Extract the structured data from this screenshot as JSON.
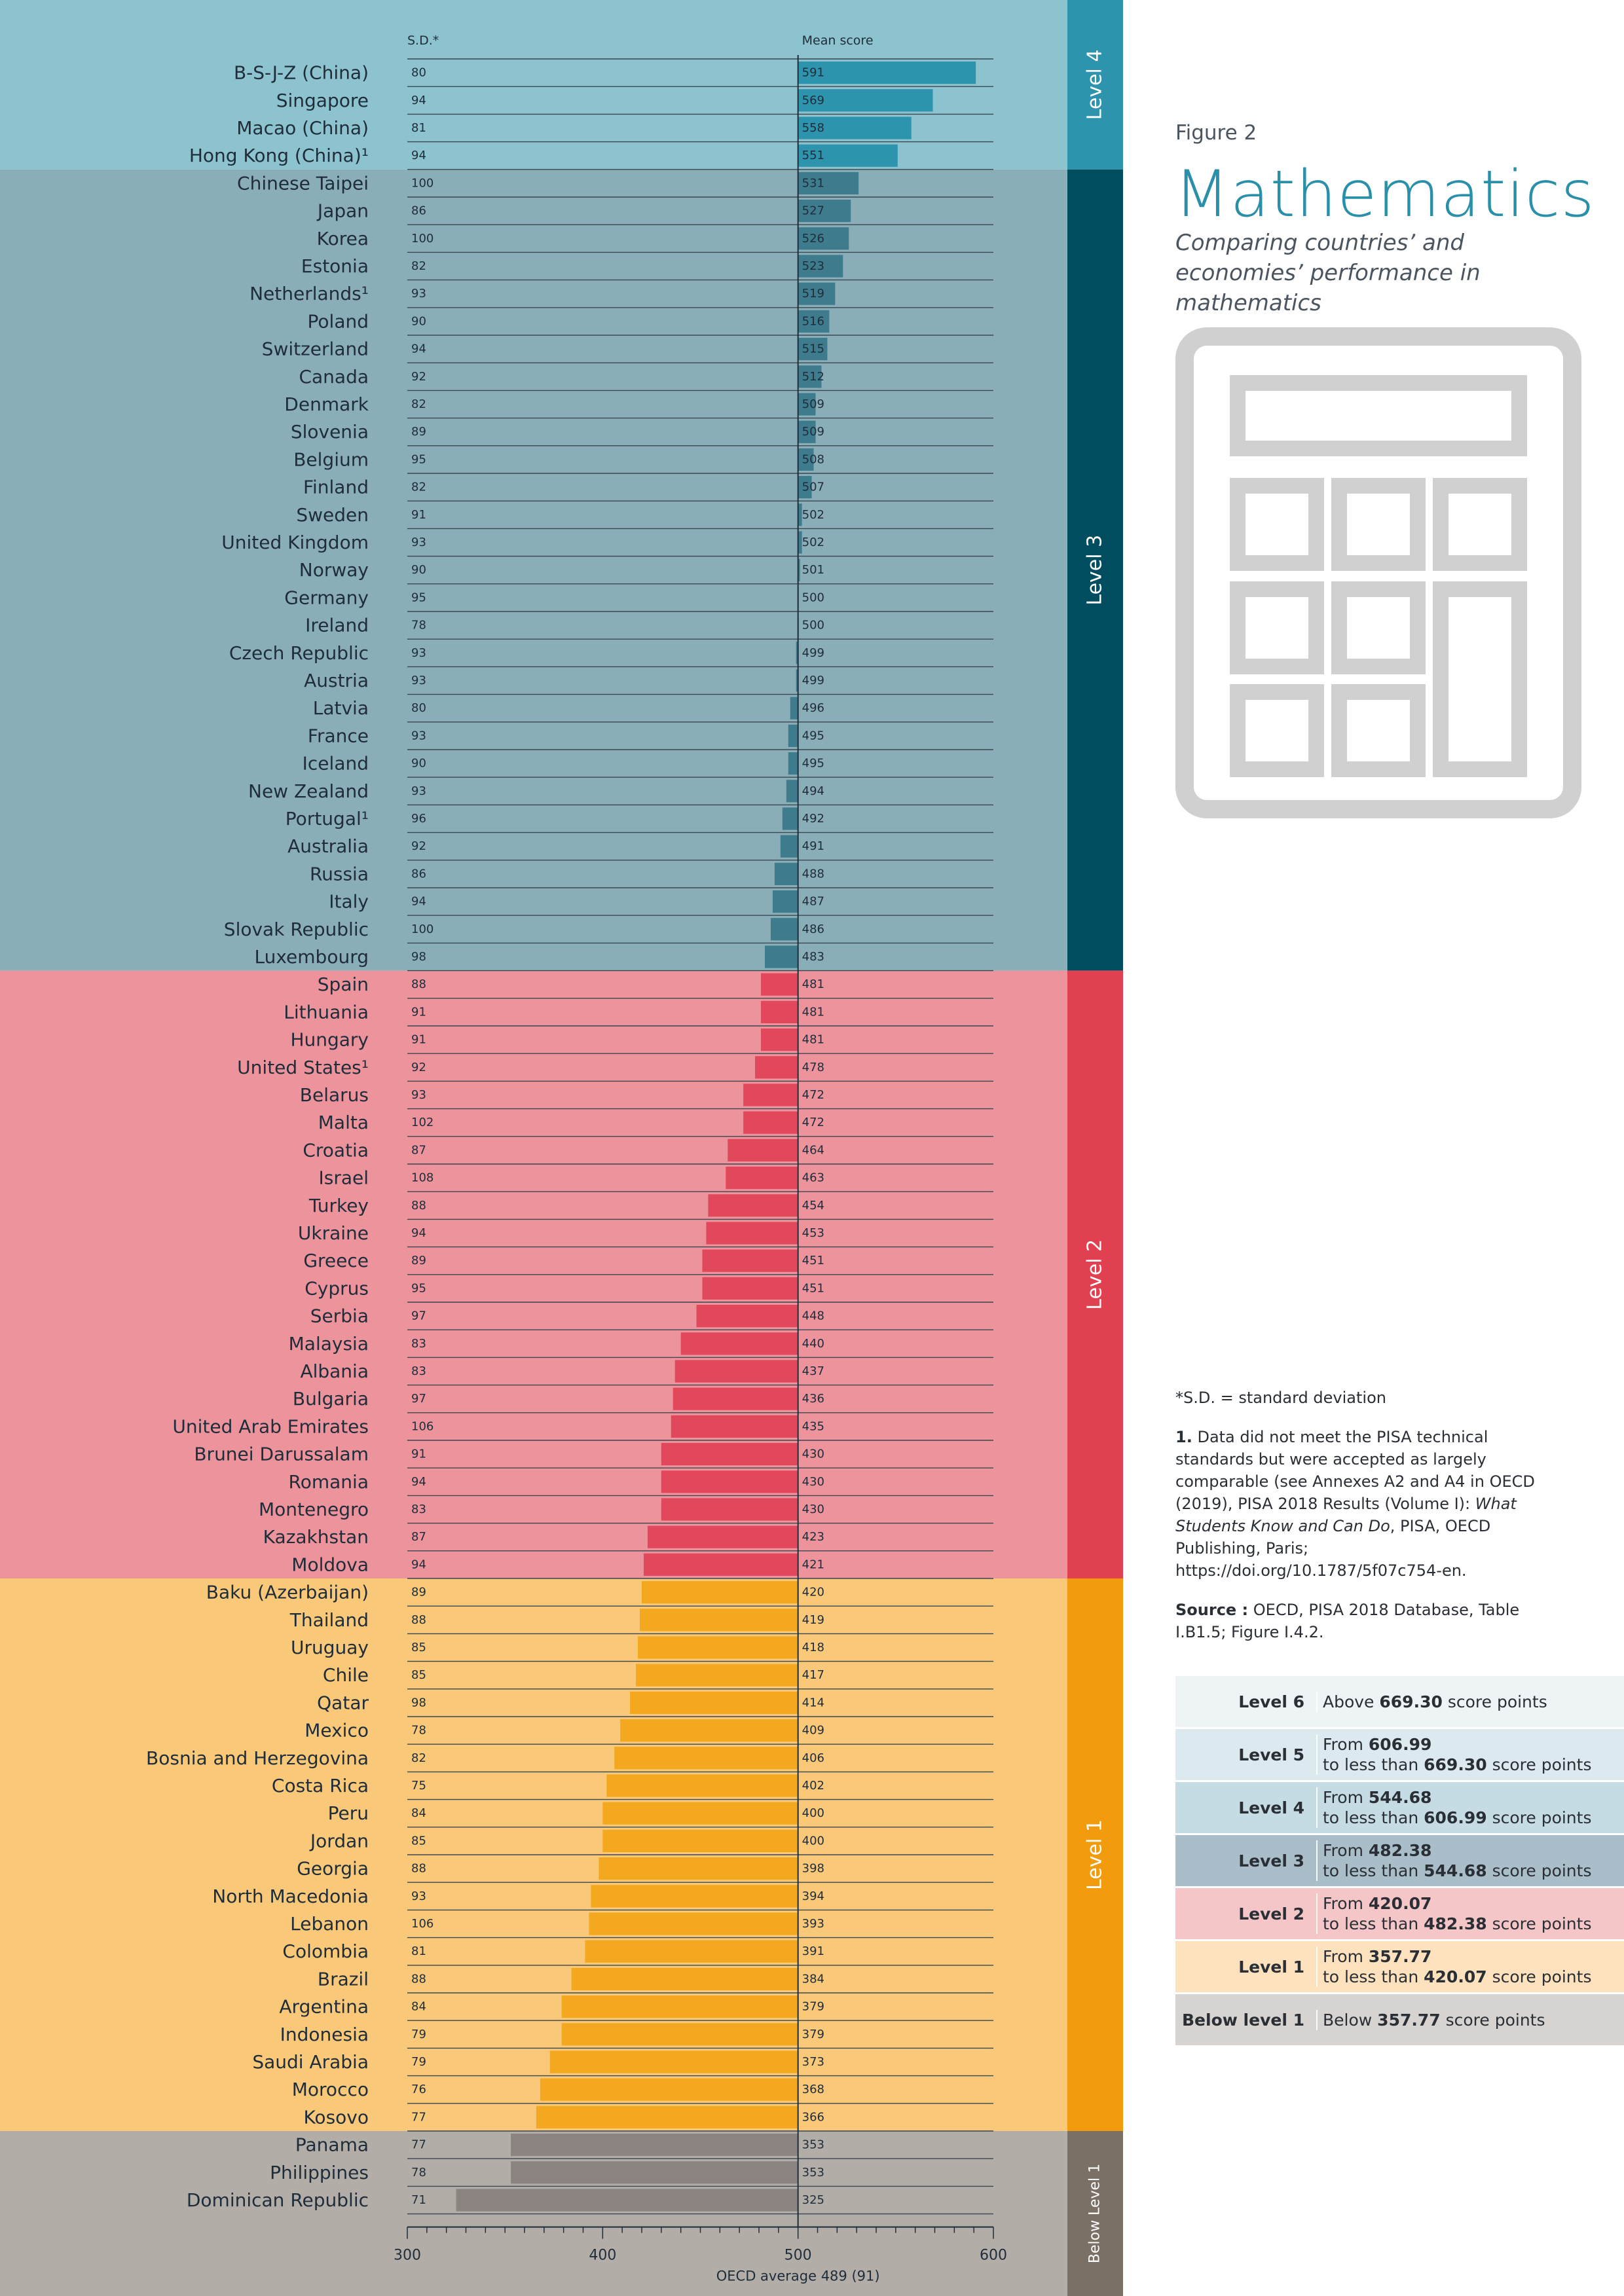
{
  "chart_data": {
    "type": "bar",
    "sd_header": "S.D.*",
    "mean_header": "Mean score",
    "xlabel": "OECD average 489 (91)",
    "xlim": [
      300,
      600
    ],
    "xticks": [
      300,
      400,
      500,
      600
    ],
    "baseline": 500,
    "rows": [
      {
        "country": "B-S-J-Z (China)",
        "sd": 80,
        "mean": 591,
        "level": "4"
      },
      {
        "country": "Singapore",
        "sd": 94,
        "mean": 569,
        "level": "4"
      },
      {
        "country": "Macao (China)",
        "sd": 81,
        "mean": 558,
        "level": "4"
      },
      {
        "country": "Hong Kong (China)¹",
        "sd": 94,
        "mean": 551,
        "level": "4"
      },
      {
        "country": "Chinese Taipei",
        "sd": 100,
        "mean": 531,
        "level": "3"
      },
      {
        "country": "Japan",
        "sd": 86,
        "mean": 527,
        "level": "3"
      },
      {
        "country": "Korea",
        "sd": 100,
        "mean": 526,
        "level": "3"
      },
      {
        "country": "Estonia",
        "sd": 82,
        "mean": 523,
        "level": "3"
      },
      {
        "country": "Netherlands¹",
        "sd": 93,
        "mean": 519,
        "level": "3"
      },
      {
        "country": "Poland",
        "sd": 90,
        "mean": 516,
        "level": "3"
      },
      {
        "country": "Switzerland",
        "sd": 94,
        "mean": 515,
        "level": "3"
      },
      {
        "country": "Canada",
        "sd": 92,
        "mean": 512,
        "level": "3"
      },
      {
        "country": "Denmark",
        "sd": 82,
        "mean": 509,
        "level": "3"
      },
      {
        "country": "Slovenia",
        "sd": 89,
        "mean": 509,
        "level": "3"
      },
      {
        "country": "Belgium",
        "sd": 95,
        "mean": 508,
        "level": "3"
      },
      {
        "country": "Finland",
        "sd": 82,
        "mean": 507,
        "level": "3"
      },
      {
        "country": "Sweden",
        "sd": 91,
        "mean": 502,
        "level": "3"
      },
      {
        "country": "United Kingdom",
        "sd": 93,
        "mean": 502,
        "level": "3"
      },
      {
        "country": "Norway",
        "sd": 90,
        "mean": 501,
        "level": "3"
      },
      {
        "country": "Germany",
        "sd": 95,
        "mean": 500,
        "level": "3"
      },
      {
        "country": "Ireland",
        "sd": 78,
        "mean": 500,
        "level": "3"
      },
      {
        "country": "Czech Republic",
        "sd": 93,
        "mean": 499,
        "level": "3"
      },
      {
        "country": "Austria",
        "sd": 93,
        "mean": 499,
        "level": "3"
      },
      {
        "country": "Latvia",
        "sd": 80,
        "mean": 496,
        "level": "3"
      },
      {
        "country": "France",
        "sd": 93,
        "mean": 495,
        "level": "3"
      },
      {
        "country": "Iceland",
        "sd": 90,
        "mean": 495,
        "level": "3"
      },
      {
        "country": "New Zealand",
        "sd": 93,
        "mean": 494,
        "level": "3"
      },
      {
        "country": "Portugal¹",
        "sd": 96,
        "mean": 492,
        "level": "3"
      },
      {
        "country": "Australia",
        "sd": 92,
        "mean": 491,
        "level": "3"
      },
      {
        "country": "Russia",
        "sd": 86,
        "mean": 488,
        "level": "3"
      },
      {
        "country": "Italy",
        "sd": 94,
        "mean": 487,
        "level": "3"
      },
      {
        "country": "Slovak Republic",
        "sd": 100,
        "mean": 486,
        "level": "3"
      },
      {
        "country": "Luxembourg",
        "sd": 98,
        "mean": 483,
        "level": "3"
      },
      {
        "country": "Spain",
        "sd": 88,
        "mean": 481,
        "level": "2"
      },
      {
        "country": "Lithuania",
        "sd": 91,
        "mean": 481,
        "level": "2"
      },
      {
        "country": "Hungary",
        "sd": 91,
        "mean": 481,
        "level": "2"
      },
      {
        "country": "United States¹",
        "sd": 92,
        "mean": 478,
        "level": "2"
      },
      {
        "country": "Belarus",
        "sd": 93,
        "mean": 472,
        "level": "2"
      },
      {
        "country": "Malta",
        "sd": 102,
        "mean": 472,
        "level": "2"
      },
      {
        "country": "Croatia",
        "sd": 87,
        "mean": 464,
        "level": "2"
      },
      {
        "country": "Israel",
        "sd": 108,
        "mean": 463,
        "level": "2"
      },
      {
        "country": "Turkey",
        "sd": 88,
        "mean": 454,
        "level": "2"
      },
      {
        "country": "Ukraine",
        "sd": 94,
        "mean": 453,
        "level": "2"
      },
      {
        "country": "Greece",
        "sd": 89,
        "mean": 451,
        "level": "2"
      },
      {
        "country": "Cyprus",
        "sd": 95,
        "mean": 451,
        "level": "2"
      },
      {
        "country": "Serbia",
        "sd": 97,
        "mean": 448,
        "level": "2"
      },
      {
        "country": "Malaysia",
        "sd": 83,
        "mean": 440,
        "level": "2"
      },
      {
        "country": "Albania",
        "sd": 83,
        "mean": 437,
        "level": "2"
      },
      {
        "country": "Bulgaria",
        "sd": 97,
        "mean": 436,
        "level": "2"
      },
      {
        "country": "United Arab Emirates",
        "sd": 106,
        "mean": 435,
        "level": "2"
      },
      {
        "country": "Brunei Darussalam",
        "sd": 91,
        "mean": 430,
        "level": "2"
      },
      {
        "country": "Romania",
        "sd": 94,
        "mean": 430,
        "level": "2"
      },
      {
        "country": "Montenegro",
        "sd": 83,
        "mean": 430,
        "level": "2"
      },
      {
        "country": "Kazakhstan",
        "sd": 87,
        "mean": 423,
        "level": "2"
      },
      {
        "country": "Moldova",
        "sd": 94,
        "mean": 421,
        "level": "2"
      },
      {
        "country": "Baku (Azerbaijan)",
        "sd": 89,
        "mean": 420,
        "level": "1"
      },
      {
        "country": "Thailand",
        "sd": 88,
        "mean": 419,
        "level": "1"
      },
      {
        "country": "Uruguay",
        "sd": 85,
        "mean": 418,
        "level": "1"
      },
      {
        "country": "Chile",
        "sd": 85,
        "mean": 417,
        "level": "1"
      },
      {
        "country": "Qatar",
        "sd": 98,
        "mean": 414,
        "level": "1"
      },
      {
        "country": "Mexico",
        "sd": 78,
        "mean": 409,
        "level": "1"
      },
      {
        "country": "Bosnia and Herzegovina",
        "sd": 82,
        "mean": 406,
        "level": "1"
      },
      {
        "country": "Costa Rica",
        "sd": 75,
        "mean": 402,
        "level": "1"
      },
      {
        "country": "Peru",
        "sd": 84,
        "mean": 400,
        "level": "1"
      },
      {
        "country": "Jordan",
        "sd": 85,
        "mean": 400,
        "level": "1"
      },
      {
        "country": "Georgia",
        "sd": 88,
        "mean": 398,
        "level": "1"
      },
      {
        "country": "North Macedonia",
        "sd": 93,
        "mean": 394,
        "level": "1"
      },
      {
        "country": "Lebanon",
        "sd": 106,
        "mean": 393,
        "level": "1"
      },
      {
        "country": "Colombia",
        "sd": 81,
        "mean": 391,
        "level": "1"
      },
      {
        "country": "Brazil",
        "sd": 88,
        "mean": 384,
        "level": "1"
      },
      {
        "country": "Argentina",
        "sd": 84,
        "mean": 379,
        "level": "1"
      },
      {
        "country": "Indonesia",
        "sd": 79,
        "mean": 379,
        "level": "1"
      },
      {
        "country": "Saudi Arabia",
        "sd": 79,
        "mean": 373,
        "level": "1"
      },
      {
        "country": "Morocco",
        "sd": 76,
        "mean": 368,
        "level": "1"
      },
      {
        "country": "Kosovo",
        "sd": 77,
        "mean": 366,
        "level": "1"
      },
      {
        "country": "Panama",
        "sd": 77,
        "mean": 353,
        "level": "b"
      },
      {
        "country": "Philippines",
        "sd": 78,
        "mean": 353,
        "level": "b"
      },
      {
        "country": "Dominican Republic",
        "sd": 71,
        "mean": 325,
        "level": "b"
      }
    ],
    "level_bands": [
      {
        "key": "4",
        "label": "Level 4",
        "bg": "#8cc3cf",
        "bar": "#2e93ad",
        "side": "#2e93ad"
      },
      {
        "key": "3",
        "label": "Level 3",
        "bg": "#8aaeb8",
        "bar": "#3e7c8d",
        "side": "#004d60"
      },
      {
        "key": "2",
        "label": "Level 2",
        "bg": "#ec939c",
        "bar": "#e2485c",
        "side": "#e0404f"
      },
      {
        "key": "1",
        "label": "Level 1",
        "bg": "#f9c878",
        "bar": "#f3a81f",
        "side": "#f29b0d"
      },
      {
        "key": "b",
        "label": "Below Level 1",
        "bg": "#b3ada8",
        "bar": "#8b8480",
        "side": "#7b7066"
      }
    ]
  },
  "figure": {
    "label": "Figure 2",
    "title": "Mathematics",
    "subtitle": "Comparing countries’ and economies’ performance in mathematics",
    "icon": "calculator-icon"
  },
  "notes": {
    "sd_note": "*S.D. = standard deviation",
    "note1_num": "1.",
    "note1_a": " Data did not meet the PISA technical standards but were accepted as largely comparable (see Annexes A2 and A4 in OECD (2019), PISA 2018 Results (Volume I): ",
    "note1_italic": "What Students Know and Can Do",
    "note1_b": ", PISA, OECD Publishing, Paris; https://doi.org/10.1787/5f07c754-en.",
    "source_label": "Source :",
    "source_text": " OECD, PISA 2018 Database, Table I.B1.5; Figure I.4.2."
  },
  "levels_table": [
    {
      "name": "Level 6",
      "pre": "Above ",
      "v1": "669.30",
      "mid": "",
      "v2": "",
      "post": " score points",
      "bg": "#eef3f6"
    },
    {
      "name": "Level 5",
      "pre": "From ",
      "v1": "606.99",
      "mid": "to less than ",
      "v2": "669.30",
      "post": " score points",
      "bg": "#dce9ef"
    },
    {
      "name": "Level 4",
      "pre": "From ",
      "v1": "544.68",
      "mid": "to less than ",
      "v2": "606.99",
      "post": " score points",
      "bg": "#c6dce5"
    },
    {
      "name": "Level 3",
      "pre": "From ",
      "v1": "482.38",
      "mid": "to less than ",
      "v2": "544.68",
      "post": " score points",
      "bg": "#a9bec8"
    },
    {
      "name": "Level 2",
      "pre": "From ",
      "v1": "420.07",
      "mid": "to less than ",
      "v2": "482.38",
      "post": " score points",
      "bg": "#f4c6c7"
    },
    {
      "name": "Level 1",
      "pre": "From ",
      "v1": "357.77",
      "mid": "to less than ",
      "v2": "420.07",
      "post": " score points",
      "bg": "#fde2bd"
    },
    {
      "name": "Below level 1",
      "pre": "Below ",
      "v1": "357.77",
      "mid": "",
      "v2": "",
      "post": " score points",
      "bg": "#d6d3d1"
    }
  ]
}
